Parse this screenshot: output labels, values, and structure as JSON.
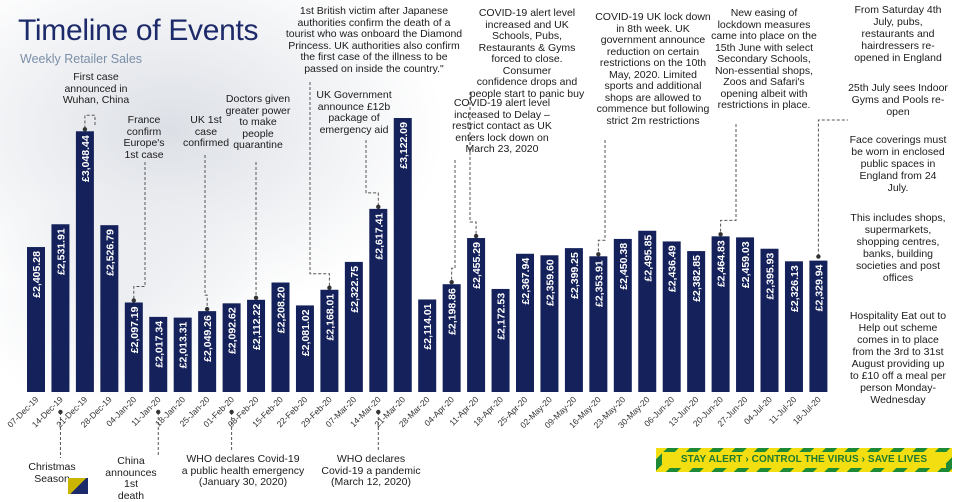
{
  "header": {
    "title": "Timeline of Events",
    "subtitle": "Weekly Retailer Sales"
  },
  "colors": {
    "bar": "#14215a",
    "bar_label": "#ffffff",
    "title": "#1d2a6a",
    "subtitle": "#7b8fa8",
    "connector": "#555555",
    "banner_yellow": "#f3de12",
    "banner_green": "#1f8a35"
  },
  "chart_data": {
    "type": "bar",
    "title": "",
    "xlabel": "",
    "ylabel": "",
    "grid": false,
    "categories": [
      "07-Dec-19",
      "14-Dec-19",
      "21-Dec-19",
      "28-Dec-19",
      "04-Jan-20",
      "11-Jan-20",
      "18-Jan-20",
      "25-Jan-20",
      "01-Feb-20",
      "08-Feb-20",
      "15-Feb-20",
      "22-Feb-20",
      "29-Feb-20",
      "07-Mar-20",
      "14-Mar-20",
      "21-Mar-20",
      "28-Mar-20",
      "04-Apr-20",
      "11-Apr-20",
      "18-Apr-20",
      "25-Apr-20",
      "02-May-20",
      "09-May-20",
      "16-May-20",
      "23-May-20",
      "30-May-20",
      "06-Jun-20",
      "13-Jun-20",
      "20-Jun-20",
      "27-Jun-20",
      "04-Jul-20",
      "11-Jul-20",
      "18-Jul-20"
    ],
    "values": [
      2405.28,
      2531.91,
      3048.44,
      2526.79,
      2097.19,
      2017.34,
      2013.31,
      2049.26,
      2092.62,
      2112.22,
      2208.2,
      2081.02,
      2168.01,
      2322.75,
      2617.41,
      3122.09,
      2114.01,
      2198.86,
      2455.29,
      2172.53,
      2367.94,
      2359.6,
      2399.25,
      2353.91,
      2450.38,
      2495.85,
      2436.49,
      2382.85,
      2464.83,
      2459.03,
      2395.93,
      2326.13,
      2329.94
    ],
    "value_labels": [
      "£2,405.28",
      "£2,531.91",
      "£3,048.44",
      "£2,526.79",
      "£2,097.19",
      "£2,017.34",
      "£2,013.31",
      "£2,049.26",
      "£2,092.62",
      "£2,112.22",
      "£2,208.20",
      "£2,081.02",
      "£2,168.01",
      "£2,322.75",
      "£2,617.41",
      "£3,122.09",
      "£2,114.01",
      "£2,198.86",
      "£2,455.29",
      "£2,172.53",
      "£2,367.94",
      "£2,359.60",
      "£2,399.25",
      "£2,353.91",
      "£2,450.38",
      "£2,495.85",
      "£2,436.49",
      "£2,382.85",
      "£2,464.83",
      "£2,459.03",
      "£2,395.93",
      "£2,326.13",
      "£2,329.94"
    ],
    "ylim": [
      1600,
      3300
    ]
  },
  "annotations": [
    {
      "id": "first-case",
      "bar": 2,
      "side": "top",
      "text": "First case\nannounced in\nWuhan, China"
    },
    {
      "id": "france",
      "bar": 4,
      "side": "top",
      "text": "France\nconfirm\nEurope's\n1st case"
    },
    {
      "id": "uk-first-case",
      "bar": 7,
      "side": "top",
      "text": "UK 1st\ncase\nconfirmed"
    },
    {
      "id": "doctors",
      "bar": 9,
      "side": "top",
      "text": "Doctors given\ngreater power\nto make\npeople\nquarantine"
    },
    {
      "id": "british-victim",
      "bar": 12,
      "side": "top",
      "text": "1st British victim after Japanese\nauthorities confirm the death of a\ntourist who was onboard the Diamond\nPrincess. UK authorities also confirm\nthe first case of the illness to be\npassed on inside the country.\""
    },
    {
      "id": "uk-gov-12b",
      "bar": 14,
      "side": "top",
      "text": "UK Government\nannounce £12b\npackage of\nemergency aid"
    },
    {
      "id": "alert-level-schools",
      "bar": 18,
      "side": "top",
      "text": "COVID-19 alert level\nincreased and UK\nSchools, Pubs,\nRestaurants & Gyms\nforced to close. Consumer\nconfidence drops and\npeople start to panic buy"
    },
    {
      "id": "alert-delay",
      "bar": 17,
      "side": "top",
      "text": "COVID-19 alert level\nincreased to Delay –\nrestrict contact as UK\nenters lock down on\nMarch 23, 2020"
    },
    {
      "id": "lockdown-8th-week",
      "bar": 23,
      "side": "top",
      "text": "COVID-19 UK lock down\nin 8th week. UK\ngovernment announce\nreduction on certain\nrestrictions on the 10th\nMay, 2020. Limited\nsports and additional\nshops are allowed to\ncommence but following\nstrict 2m restrictions"
    },
    {
      "id": "new-easing",
      "bar": 28,
      "side": "top",
      "text": "New easing of\nlockdown measures\ncame into place on the\n15th June with select\nSecondary Schools,\nNon-essential shops,\nZoos and Safari's\nopening albeit with\nrestrictions in place."
    },
    {
      "id": "christmas",
      "bar": 1,
      "side": "bottom",
      "text": "Christmas\nSeason"
    },
    {
      "id": "china-death",
      "bar": 5,
      "side": "bottom",
      "text": "China\nannounces 1st\ndeath"
    },
    {
      "id": "who-emergency",
      "bar": 8,
      "side": "bottom",
      "text": "WHO declares Covid-19\na public health emergency\n(January 30, 2020)"
    },
    {
      "id": "who-pandemic",
      "bar": 14,
      "side": "bottom",
      "text": "WHO declares\nCovid-19 a pandemic\n(March 12, 2020)"
    }
  ],
  "sidebar": [
    {
      "id": "july-4th",
      "text": "From Saturday 4th\nJuly, pubs,\nrestaurants and\nhairdressers re-\nopened in England"
    },
    {
      "id": "july-25th",
      "text": "25th July sees Indoor\nGyms and Pools re-\nopen"
    },
    {
      "id": "face-coverings",
      "text": "Face coverings must\nbe worn in enclosed\npublic spaces in\nEngland from 24\nJuly."
    },
    {
      "id": "includes-shops",
      "text": "This includes shops,\nsupermarkets,\nshopping centres,\nbanks, building\nsocieties and post\noffices"
    },
    {
      "id": "eat-out",
      "text": "Hospitality Eat out to\nHelp out scheme\ncomes in to place\nfrom the 3rd to 31st\nAugust providing up\nto £10 off a meal per\nperson Monday-\nWednesday"
    }
  ],
  "banner": {
    "text": "STAY ALERT › CONTROL THE VIRUS › SAVE LIVES"
  }
}
